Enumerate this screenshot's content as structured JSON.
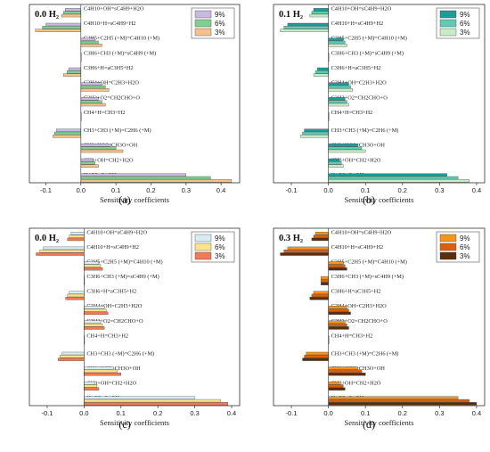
{
  "chart_data": [
    {
      "type": "bar",
      "orientation": "horizontal",
      "title": "0.0 H₂",
      "panel_label": "(a)",
      "xlabel": "Sensitivity coefficients",
      "xlim": [
        -0.15,
        0.45
      ],
      "xticks": [
        "-0.1",
        "0.0",
        "0.1",
        "0.2",
        "0.3",
        "0.4"
      ],
      "colors": [
        "#c9b8e0",
        "#7fcf8e",
        "#f5c08a"
      ],
      "categories": [
        "C4H10+OH=sC4H9+H2O",
        "C4H10+H=sC4H9+H2",
        "C2H5+C2H5 (+M)=C4H10 (+M)",
        "C3H6+CH3 (+M)=sC4H9 (+M)",
        "C3H6+H=aC3H5+H2",
        "C2H4+OH=C2H3+H2O",
        "C2H3+O2=CH2CHO+O",
        "CH4+H=CH3+H2",
        "CH3+CH3 (+M)=C2H6 (+M)",
        "CH3+HO2=CH3O+OH",
        "CH3+OH=CH2+H2O",
        "H+O2=O+OH"
      ],
      "series": [
        {
          "name": "9%",
          "values": [
            -0.045,
            -0.1,
            0.04,
            0.0,
            -0.035,
            0.06,
            0.05,
            0.0,
            -0.07,
            0.085,
            0.035,
            0.3
          ]
        },
        {
          "name": "6%",
          "values": [
            -0.05,
            -0.11,
            0.05,
            0.0,
            -0.04,
            0.07,
            0.06,
            0.0,
            -0.075,
            0.1,
            0.04,
            0.37
          ]
        },
        {
          "name": "3%",
          "values": [
            -0.055,
            -0.13,
            0.06,
            0.0,
            -0.05,
            0.08,
            0.07,
            0.0,
            -0.08,
            0.12,
            0.05,
            0.43
          ]
        }
      ]
    },
    {
      "type": "bar",
      "orientation": "horizontal",
      "title": "0.1 H₂",
      "panel_label": "(b)",
      "xlabel": "Sensitivity coefficients",
      "xlim": [
        -0.15,
        0.42
      ],
      "xticks": [
        "-0.1",
        "0.0",
        "0.1",
        "0.2",
        "0.3",
        "0.4"
      ],
      "colors": [
        "#1a9d9b",
        "#5fcbb5",
        "#c8ecc8"
      ],
      "categories": [
        "C4H10+OH=sC4H9+H2O",
        "C4H10+H=sC4H9+H2",
        "C2H5+C2H5 (+M)=C4H10 (+M)",
        "C3H6+CH3 (+M)=sC4H9 (+M)",
        "C3H6+H=aC3H5+H2",
        "C2H4+OH=C2H3+H2O",
        "C2H3+O2=CH2CHO+O",
        "CH4+H=CH3+H2",
        "CH3+CH3 (+M)=C2H6 (+M)",
        "CH3+HO2=CH3O+OH",
        "CH3+OH=CH2+H2O",
        "H+O2=O+OH"
      ],
      "series": [
        {
          "name": "9%",
          "values": [
            -0.04,
            -0.11,
            0.04,
            0.0,
            -0.03,
            0.055,
            0.045,
            0.0,
            -0.065,
            0.08,
            0.03,
            0.32
          ]
        },
        {
          "name": "6%",
          "values": [
            -0.045,
            -0.12,
            0.045,
            0.0,
            -0.035,
            0.06,
            0.05,
            0.0,
            -0.07,
            0.09,
            0.035,
            0.35
          ]
        },
        {
          "name": "3%",
          "values": [
            -0.05,
            -0.13,
            0.05,
            0.0,
            -0.04,
            0.065,
            0.055,
            0.0,
            -0.075,
            0.1,
            0.04,
            0.38
          ]
        }
      ]
    },
    {
      "type": "bar",
      "orientation": "horizontal",
      "title": "0.0 H₂",
      "panel_label": "(c)",
      "xlabel": "Sensitivity coefficients",
      "xlim": [
        -0.15,
        0.42
      ],
      "xticks": [
        "-0.1",
        "0.0",
        "0.1",
        "0.2",
        "0.3",
        "0.4"
      ],
      "colors": [
        "#d8ecf4",
        "#fbe28c",
        "#f07a55"
      ],
      "categories": [
        "C4H10+OH=sC4H9+H2O",
        "C4H10+H=sC4H9+H2",
        "C2H5+C2H5 (+M)=C4H10 (+M)",
        "C3H6+CH3 (+M)=sC4H9 (+M)",
        "C3H6+H=aC3H5+H2",
        "C2H4+OH=C2H3+H2O",
        "C2H3+O2=CH2CHO+O",
        "CH4+H=CH3+H2",
        "CH3+CH3 (+M)=C2H6 (+M)",
        "CH3+HO2=CH3O+OH",
        "CH3+OH=CH2+H2O",
        "H+O2=O+OH"
      ],
      "series": [
        {
          "name": "9%",
          "values": [
            -0.035,
            -0.11,
            0.04,
            0.0,
            -0.04,
            0.055,
            0.045,
            0.0,
            -0.06,
            0.08,
            0.03,
            0.3
          ]
        },
        {
          "name": "6%",
          "values": [
            -0.04,
            -0.12,
            0.045,
            0.0,
            -0.045,
            0.06,
            0.05,
            0.0,
            -0.065,
            0.09,
            0.035,
            0.37
          ]
        },
        {
          "name": "3%",
          "values": [
            -0.045,
            -0.13,
            0.05,
            0.0,
            -0.05,
            0.065,
            0.055,
            0.0,
            -0.07,
            0.1,
            0.04,
            0.39
          ]
        }
      ]
    },
    {
      "type": "bar",
      "orientation": "horizontal",
      "title": "0.3 H₂",
      "panel_label": "(d)",
      "xlabel": "Sensitivity coefficients",
      "xlim": [
        -0.15,
        0.42
      ],
      "xticks": [
        "-0.1",
        "0.0",
        "0.1",
        "0.2",
        "0.3",
        "0.4"
      ],
      "colors": [
        "#f7931e",
        "#d9600f",
        "#5a2d0c"
      ],
      "categories": [
        "C4H10+OH=sC4H9+H2O",
        "C4H10+H=sC4H9+H2",
        "C2H5+C2H5 (+M)=C4H10 (+M)",
        "C3H6+CH3 (+M)=sC4H9 (+M)",
        "C3H6+H=aC3H5+H2",
        "C2H4+OH=C2H3+H2O",
        "C2H3+O2=CH2CHO+O",
        "CH4+H=CH3+H2",
        "CH3+CH3 (+M)=C2H6 (+M)",
        "CH3+HO2=CH3O+OH",
        "CH3+OH=CH2+H2O",
        "H+O2=O+OH"
      ],
      "series": [
        {
          "name": "9%",
          "values": [
            -0.035,
            -0.11,
            0.04,
            -0.02,
            -0.04,
            0.05,
            0.045,
            0.0,
            -0.06,
            0.08,
            0.03,
            0.35
          ]
        },
        {
          "name": "6%",
          "values": [
            -0.04,
            -0.12,
            0.045,
            -0.02,
            -0.045,
            0.055,
            0.05,
            0.0,
            -0.065,
            0.09,
            0.04,
            0.38
          ]
        },
        {
          "name": "3%",
          "values": [
            -0.045,
            -0.13,
            0.05,
            -0.02,
            -0.05,
            0.06,
            0.055,
            0.0,
            -0.07,
            0.1,
            0.045,
            0.4
          ]
        }
      ]
    }
  ]
}
